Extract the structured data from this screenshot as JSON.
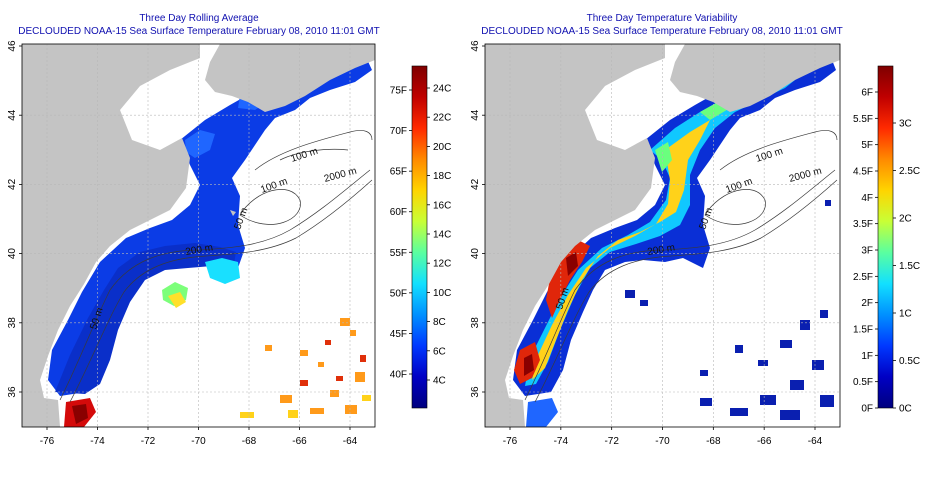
{
  "left": {
    "title_line1": "Three Day Rolling Average",
    "title_line2": "DECLOUDED NOAA-15 Sea Surface Temperature February 08, 2010 11:01 GMT",
    "lat_ticks": [
      "36",
      "38",
      "40",
      "42",
      "44",
      "46"
    ],
    "lon_ticks": [
      "-76",
      "-74",
      "-72",
      "-70",
      "-68",
      "-66",
      "-64"
    ],
    "contours": [
      "100 m",
      "2000 m",
      "100 m",
      "50 m",
      "200 m",
      "50 m"
    ],
    "colorbar_f": [
      "75F",
      "70F",
      "65F",
      "60F",
      "55F",
      "50F",
      "45F",
      "40F"
    ],
    "colorbar_c": [
      "24C",
      "22C",
      "20C",
      "18C",
      "16C",
      "14C",
      "12C",
      "10C",
      "8C",
      "6C",
      "4C"
    ],
    "colorbar_colors": [
      "#7f0000",
      "#c00000",
      "#ff2a00",
      "#ff8a00",
      "#ffd400",
      "#c8ff36",
      "#5affa0",
      "#12e0ff",
      "#0090ff",
      "#0038ff",
      "#0000c4",
      "#00007f"
    ]
  },
  "right": {
    "title_line1": "Three Day Temperature Variability",
    "title_line2": "DECLOUDED NOAA-15 Sea Surface Temperature February 08, 2010 11:01 GMT",
    "lat_ticks": [
      "36",
      "38",
      "40",
      "42",
      "44",
      "46"
    ],
    "lon_ticks": [
      "-76",
      "-74",
      "-72",
      "-70",
      "-68",
      "-66",
      "-64"
    ],
    "contours": [
      "100 m",
      "2000 m",
      "100 m",
      "50 m",
      "200 m",
      "50 m"
    ],
    "colorbar_f": [
      "6F",
      "5.5F",
      "5F",
      "4.5F",
      "4F",
      "3.5F",
      "3F",
      "2.5F",
      "2F",
      "1.5F",
      "1F",
      "0.5F",
      "0F"
    ],
    "colorbar_c": [
      "3C",
      "2.5C",
      "2C",
      "1.5C",
      "1C",
      "0.5C",
      "0C"
    ],
    "colorbar_colors": [
      "#7f0000",
      "#c00000",
      "#ff2a00",
      "#ff8a00",
      "#ffd400",
      "#c8ff36",
      "#5affa0",
      "#12e0ff",
      "#0090ff",
      "#0038ff",
      "#0000c4",
      "#00007f"
    ]
  }
}
